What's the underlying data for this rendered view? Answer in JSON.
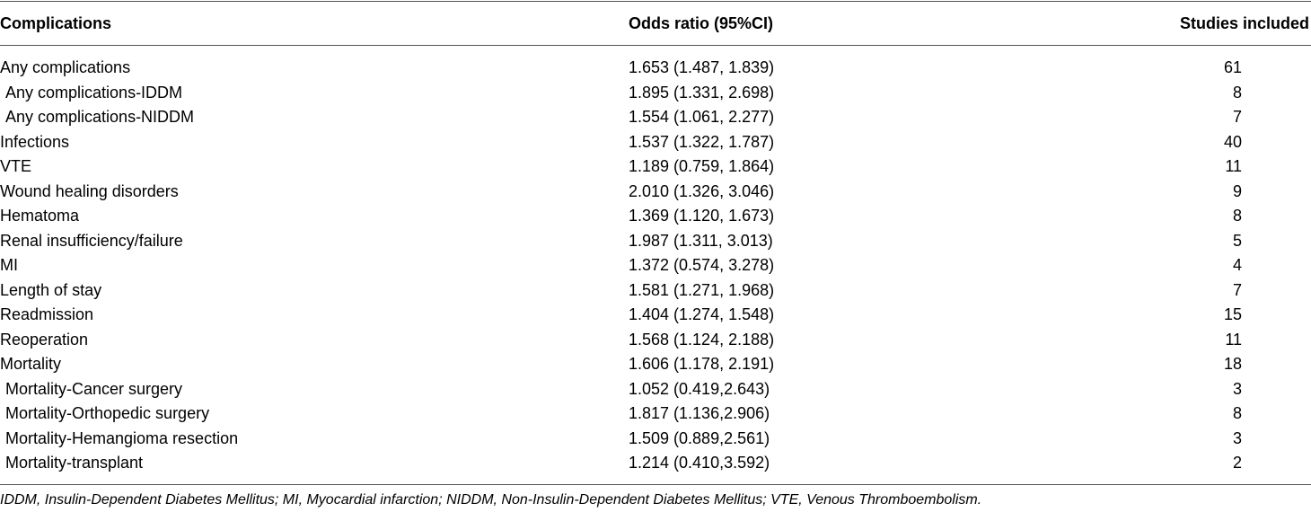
{
  "table": {
    "headers": {
      "complications": "Complications",
      "odds_ratio": "Odds ratio  (95%CI)",
      "studies": "Studies included"
    },
    "rows": [
      {
        "label": "Any complications",
        "or": "1.653 (1.487, 1.839)",
        "studies": "61",
        "sub": false
      },
      {
        "label": "Any complications-IDDM",
        "or": "1.895 (1.331, 2.698)",
        "studies": "8",
        "sub": true
      },
      {
        "label": "Any complications-NIDDM",
        "or": "1.554 (1.061, 2.277)",
        "studies": "7",
        "sub": true
      },
      {
        "label": "Infections",
        "or": "1.537 (1.322, 1.787)",
        "studies": "40",
        "sub": false
      },
      {
        "label": "VTE",
        "or": "1.189 (0.759, 1.864)",
        "studies": "11",
        "sub": false
      },
      {
        "label": "Wound healing disorders",
        "or": "2.010 (1.326, 3.046)",
        "studies": "9",
        "sub": false
      },
      {
        "label": "Hematoma",
        "or": "1.369 (1.120, 1.673)",
        "studies": "8",
        "sub": false
      },
      {
        "label": "Renal insufficiency/failure",
        "or": "1.987 (1.311, 3.013)",
        "studies": "5",
        "sub": false
      },
      {
        "label": "MI",
        "or": "1.372 (0.574, 3.278)",
        "studies": "4",
        "sub": false
      },
      {
        "label": "Length of stay",
        "or": "1.581 (1.271, 1.968)",
        "studies": "7",
        "sub": false
      },
      {
        "label": "Readmission",
        "or": "1.404 (1.274, 1.548)",
        "studies": "15",
        "sub": false
      },
      {
        "label": "Reoperation",
        "or": "1.568 (1.124, 2.188)",
        "studies": "11",
        "sub": false
      },
      {
        "label": "Mortality",
        "or": "1.606 (1.178, 2.191)",
        "studies": "18",
        "sub": false
      },
      {
        "label": "Mortality-Cancer surgery",
        "or": "1.052 (0.419,2.643)",
        "studies": "3",
        "sub": true
      },
      {
        "label": "Mortality-Orthopedic surgery",
        "or": "1.817 (1.136,2.906)",
        "studies": "8",
        "sub": true
      },
      {
        "label": "Mortality-Hemangioma resection",
        "or": "1.509 (0.889,2.561)",
        "studies": "3",
        "sub": true
      },
      {
        "label": "Mortality-transplant",
        "or": "1.214 (0.410,3.592)",
        "studies": "2",
        "sub": true
      }
    ]
  },
  "footnote": "IDDM, Insulin-Dependent Diabetes Mellitus; MI, Myocardial infarction; NIDDM, Non-Insulin-Dependent Diabetes Mellitus; VTE, Venous Thromboembolism."
}
